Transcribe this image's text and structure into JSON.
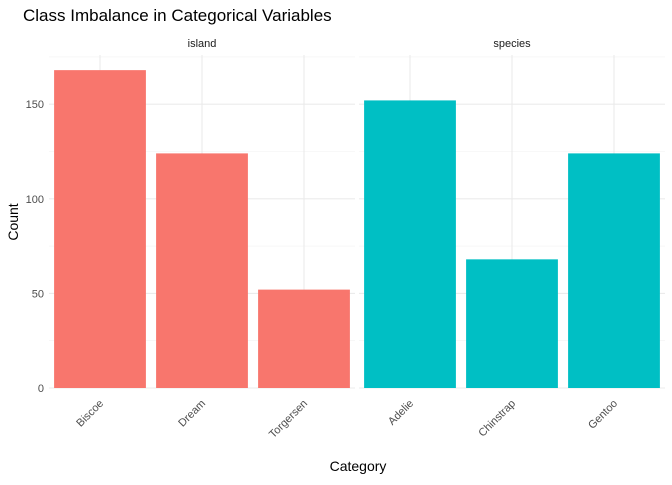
{
  "chart_data": {
    "type": "bar",
    "title": "Class Imbalance in Categorical Variables",
    "xlabel": "Category",
    "ylabel": "Count",
    "ylim": [
      0,
      176
    ],
    "yticks": [
      0,
      50,
      100,
      150
    ],
    "grid": true,
    "legend": "none",
    "panels": [
      {
        "strip": "island",
        "color": "#F8766D",
        "categories": [
          "Biscoe",
          "Dream",
          "Torgersen"
        ],
        "values": [
          168,
          124,
          52
        ]
      },
      {
        "strip": "species",
        "color": "#00BFC4",
        "categories": [
          "Adelie",
          "Chinstrap",
          "Gentoo"
        ],
        "values": [
          152,
          68,
          124
        ]
      }
    ]
  }
}
